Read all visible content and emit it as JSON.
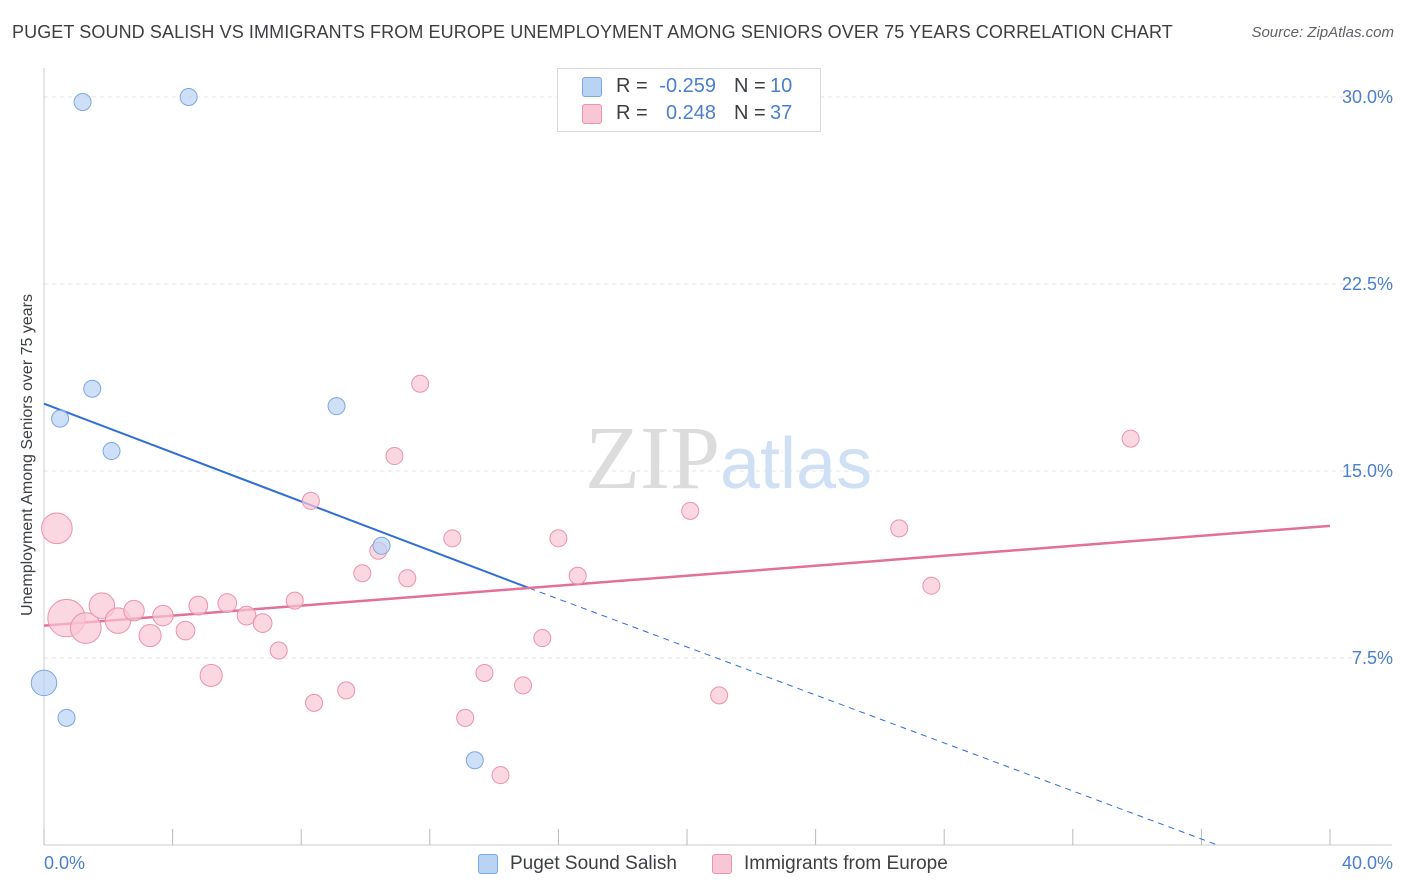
{
  "header": {
    "title": "PUGET SOUND SALISH VS IMMIGRANTS FROM EUROPE UNEMPLOYMENT AMONG SENIORS OVER 75 YEARS CORRELATION CHART",
    "source": "Source: ZipAtlas.com"
  },
  "legend_top": {
    "rows": [
      {
        "r_label": "R =",
        "r_value": "-0.259",
        "n_label": "N =",
        "n_value": "10"
      },
      {
        "r_label": "R =",
        "r_value": "0.248",
        "n_label": "N =",
        "n_value": "37"
      }
    ]
  },
  "legend_bottom": {
    "items": [
      "Puget Sound Salish",
      "Immigrants from Europe"
    ]
  },
  "colors": {
    "blue_fill": "#b9d3f5",
    "blue_stroke": "#7ea6e0",
    "blue_line": "#2f6fd6",
    "pink_fill": "#f9c6d6",
    "pink_stroke": "#eb92ae",
    "pink_line": "#e2709a",
    "grid": "#e3e3e3",
    "tick_text": "#4a7fd0"
  },
  "chart_data": {
    "type": "scatter",
    "title": "PUGET SOUND SALISH VS IMMIGRANTS FROM EUROPE UNEMPLOYMENT AMONG SENIORS OVER 75 YEARS CORRELATION CHART",
    "xlabel": "",
    "ylabel": "Unemployment Among Seniors over 75 years",
    "xlim": [
      0,
      40
    ],
    "ylim": [
      0,
      31
    ],
    "x_tick_labels": [
      "0.0%",
      "40.0%"
    ],
    "y_ticks": [
      7.5,
      15.0,
      22.5,
      30.0
    ],
    "y_tick_labels": [
      "7.5%",
      "15.0%",
      "22.5%",
      "30.0%"
    ],
    "grid": true,
    "watermark": "ZIPatlas",
    "series": [
      {
        "name": "Puget Sound Salish",
        "color": "blue",
        "points": [
          {
            "x": 1.2,
            "y": 29.8,
            "s": 1
          },
          {
            "x": 4.5,
            "y": 30.0,
            "s": 1
          },
          {
            "x": 1.5,
            "y": 18.3,
            "s": 1
          },
          {
            "x": 0.5,
            "y": 17.1,
            "s": 1
          },
          {
            "x": 2.1,
            "y": 15.8,
            "s": 1
          },
          {
            "x": 9.1,
            "y": 17.6,
            "s": 1
          },
          {
            "x": 10.5,
            "y": 12.0,
            "s": 1
          },
          {
            "x": 0.0,
            "y": 6.5,
            "s": 1.5
          },
          {
            "x": 0.7,
            "y": 5.1,
            "s": 1
          },
          {
            "x": 13.4,
            "y": 3.4,
            "s": 1
          }
        ],
        "trend": {
          "x0": 0,
          "y0": 17.7,
          "x1": 15.1,
          "y1": 10.3,
          "dash_to_x": 36.5,
          "dash_to_y": 0
        }
      },
      {
        "name": "Immigrants from Europe",
        "color": "pink",
        "points": [
          {
            "x": 0.4,
            "y": 12.7,
            "s": 1.8
          },
          {
            "x": 0.7,
            "y": 9.1,
            "s": 2.2
          },
          {
            "x": 1.3,
            "y": 8.7,
            "s": 1.8
          },
          {
            "x": 1.8,
            "y": 9.6,
            "s": 1.5
          },
          {
            "x": 2.3,
            "y": 9.0,
            "s": 1.5
          },
          {
            "x": 2.8,
            "y": 9.4,
            "s": 1.2
          },
          {
            "x": 3.3,
            "y": 8.4,
            "s": 1.3
          },
          {
            "x": 3.7,
            "y": 9.2,
            "s": 1.2
          },
          {
            "x": 4.4,
            "y": 8.6,
            "s": 1.1
          },
          {
            "x": 4.8,
            "y": 9.6,
            "s": 1.1
          },
          {
            "x": 5.2,
            "y": 6.8,
            "s": 1.3
          },
          {
            "x": 5.7,
            "y": 9.7,
            "s": 1.1
          },
          {
            "x": 6.3,
            "y": 9.2,
            "s": 1.1
          },
          {
            "x": 6.8,
            "y": 8.9,
            "s": 1.1
          },
          {
            "x": 7.3,
            "y": 7.8,
            "s": 1
          },
          {
            "x": 7.8,
            "y": 9.8,
            "s": 1
          },
          {
            "x": 8.3,
            "y": 13.8,
            "s": 1
          },
          {
            "x": 8.4,
            "y": 5.7,
            "s": 1
          },
          {
            "x": 9.4,
            "y": 6.2,
            "s": 1
          },
          {
            "x": 9.9,
            "y": 10.9,
            "s": 1
          },
          {
            "x": 10.4,
            "y": 11.8,
            "s": 1
          },
          {
            "x": 10.9,
            "y": 15.6,
            "s": 1
          },
          {
            "x": 11.3,
            "y": 10.7,
            "s": 1
          },
          {
            "x": 11.7,
            "y": 18.5,
            "s": 1
          },
          {
            "x": 12.7,
            "y": 12.3,
            "s": 1
          },
          {
            "x": 13.1,
            "y": 5.1,
            "s": 1
          },
          {
            "x": 13.7,
            "y": 6.9,
            "s": 1
          },
          {
            "x": 14.2,
            "y": 2.8,
            "s": 1
          },
          {
            "x": 14.9,
            "y": 6.4,
            "s": 1
          },
          {
            "x": 15.5,
            "y": 8.3,
            "s": 1
          },
          {
            "x": 16.0,
            "y": 12.3,
            "s": 1
          },
          {
            "x": 16.6,
            "y": 10.8,
            "s": 1
          },
          {
            "x": 20.1,
            "y": 13.4,
            "s": 1
          },
          {
            "x": 21.0,
            "y": 6.0,
            "s": 1
          },
          {
            "x": 26.6,
            "y": 12.7,
            "s": 1
          },
          {
            "x": 27.6,
            "y": 10.4,
            "s": 1
          },
          {
            "x": 33.8,
            "y": 16.3,
            "s": 1
          }
        ],
        "trend": {
          "x0": 0,
          "y0": 8.8,
          "x1": 40,
          "y1": 12.8
        }
      }
    ]
  }
}
